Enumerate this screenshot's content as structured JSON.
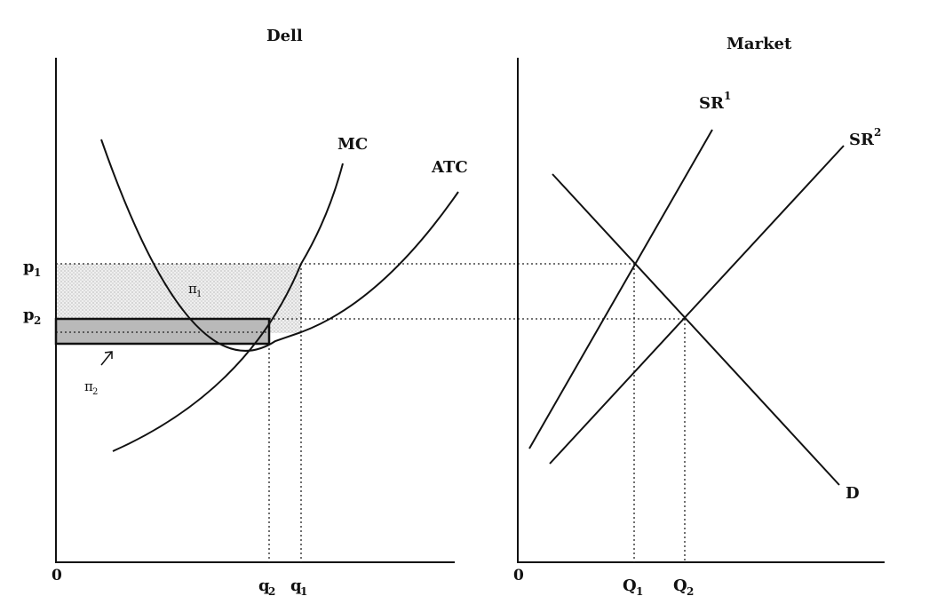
{
  "colors": {
    "ink": "#111111",
    "profit1_fill": "#e6e6e6",
    "profit2_fill": "#b9b9b9"
  },
  "dell": {
    "title": "Dell",
    "origin_label": "0",
    "price_labels": {
      "p1": "p",
      "p1_sub": "1",
      "p2": "p",
      "p2_sub": "2"
    },
    "quantity_labels": {
      "q2": "q",
      "q2_sub": "2",
      "q1": "q",
      "q1_sub": "1"
    },
    "curve_labels": {
      "mc": "MC",
      "atc": "ATC"
    },
    "profit_labels": {
      "pi1": "π",
      "pi1_sub": "1",
      "pi2": "π",
      "pi2_sub": "2"
    }
  },
  "market": {
    "title": "Market",
    "origin_label": "0",
    "curve_labels": {
      "sr1": "SR",
      "sr1_sup": "1",
      "sr2": "SR",
      "sr2_sup": "2",
      "demand": "D"
    },
    "quantity_labels": {
      "Q1": "Q",
      "Q1_sub": "1",
      "Q2": "Q",
      "Q2_sub": "2"
    }
  }
}
